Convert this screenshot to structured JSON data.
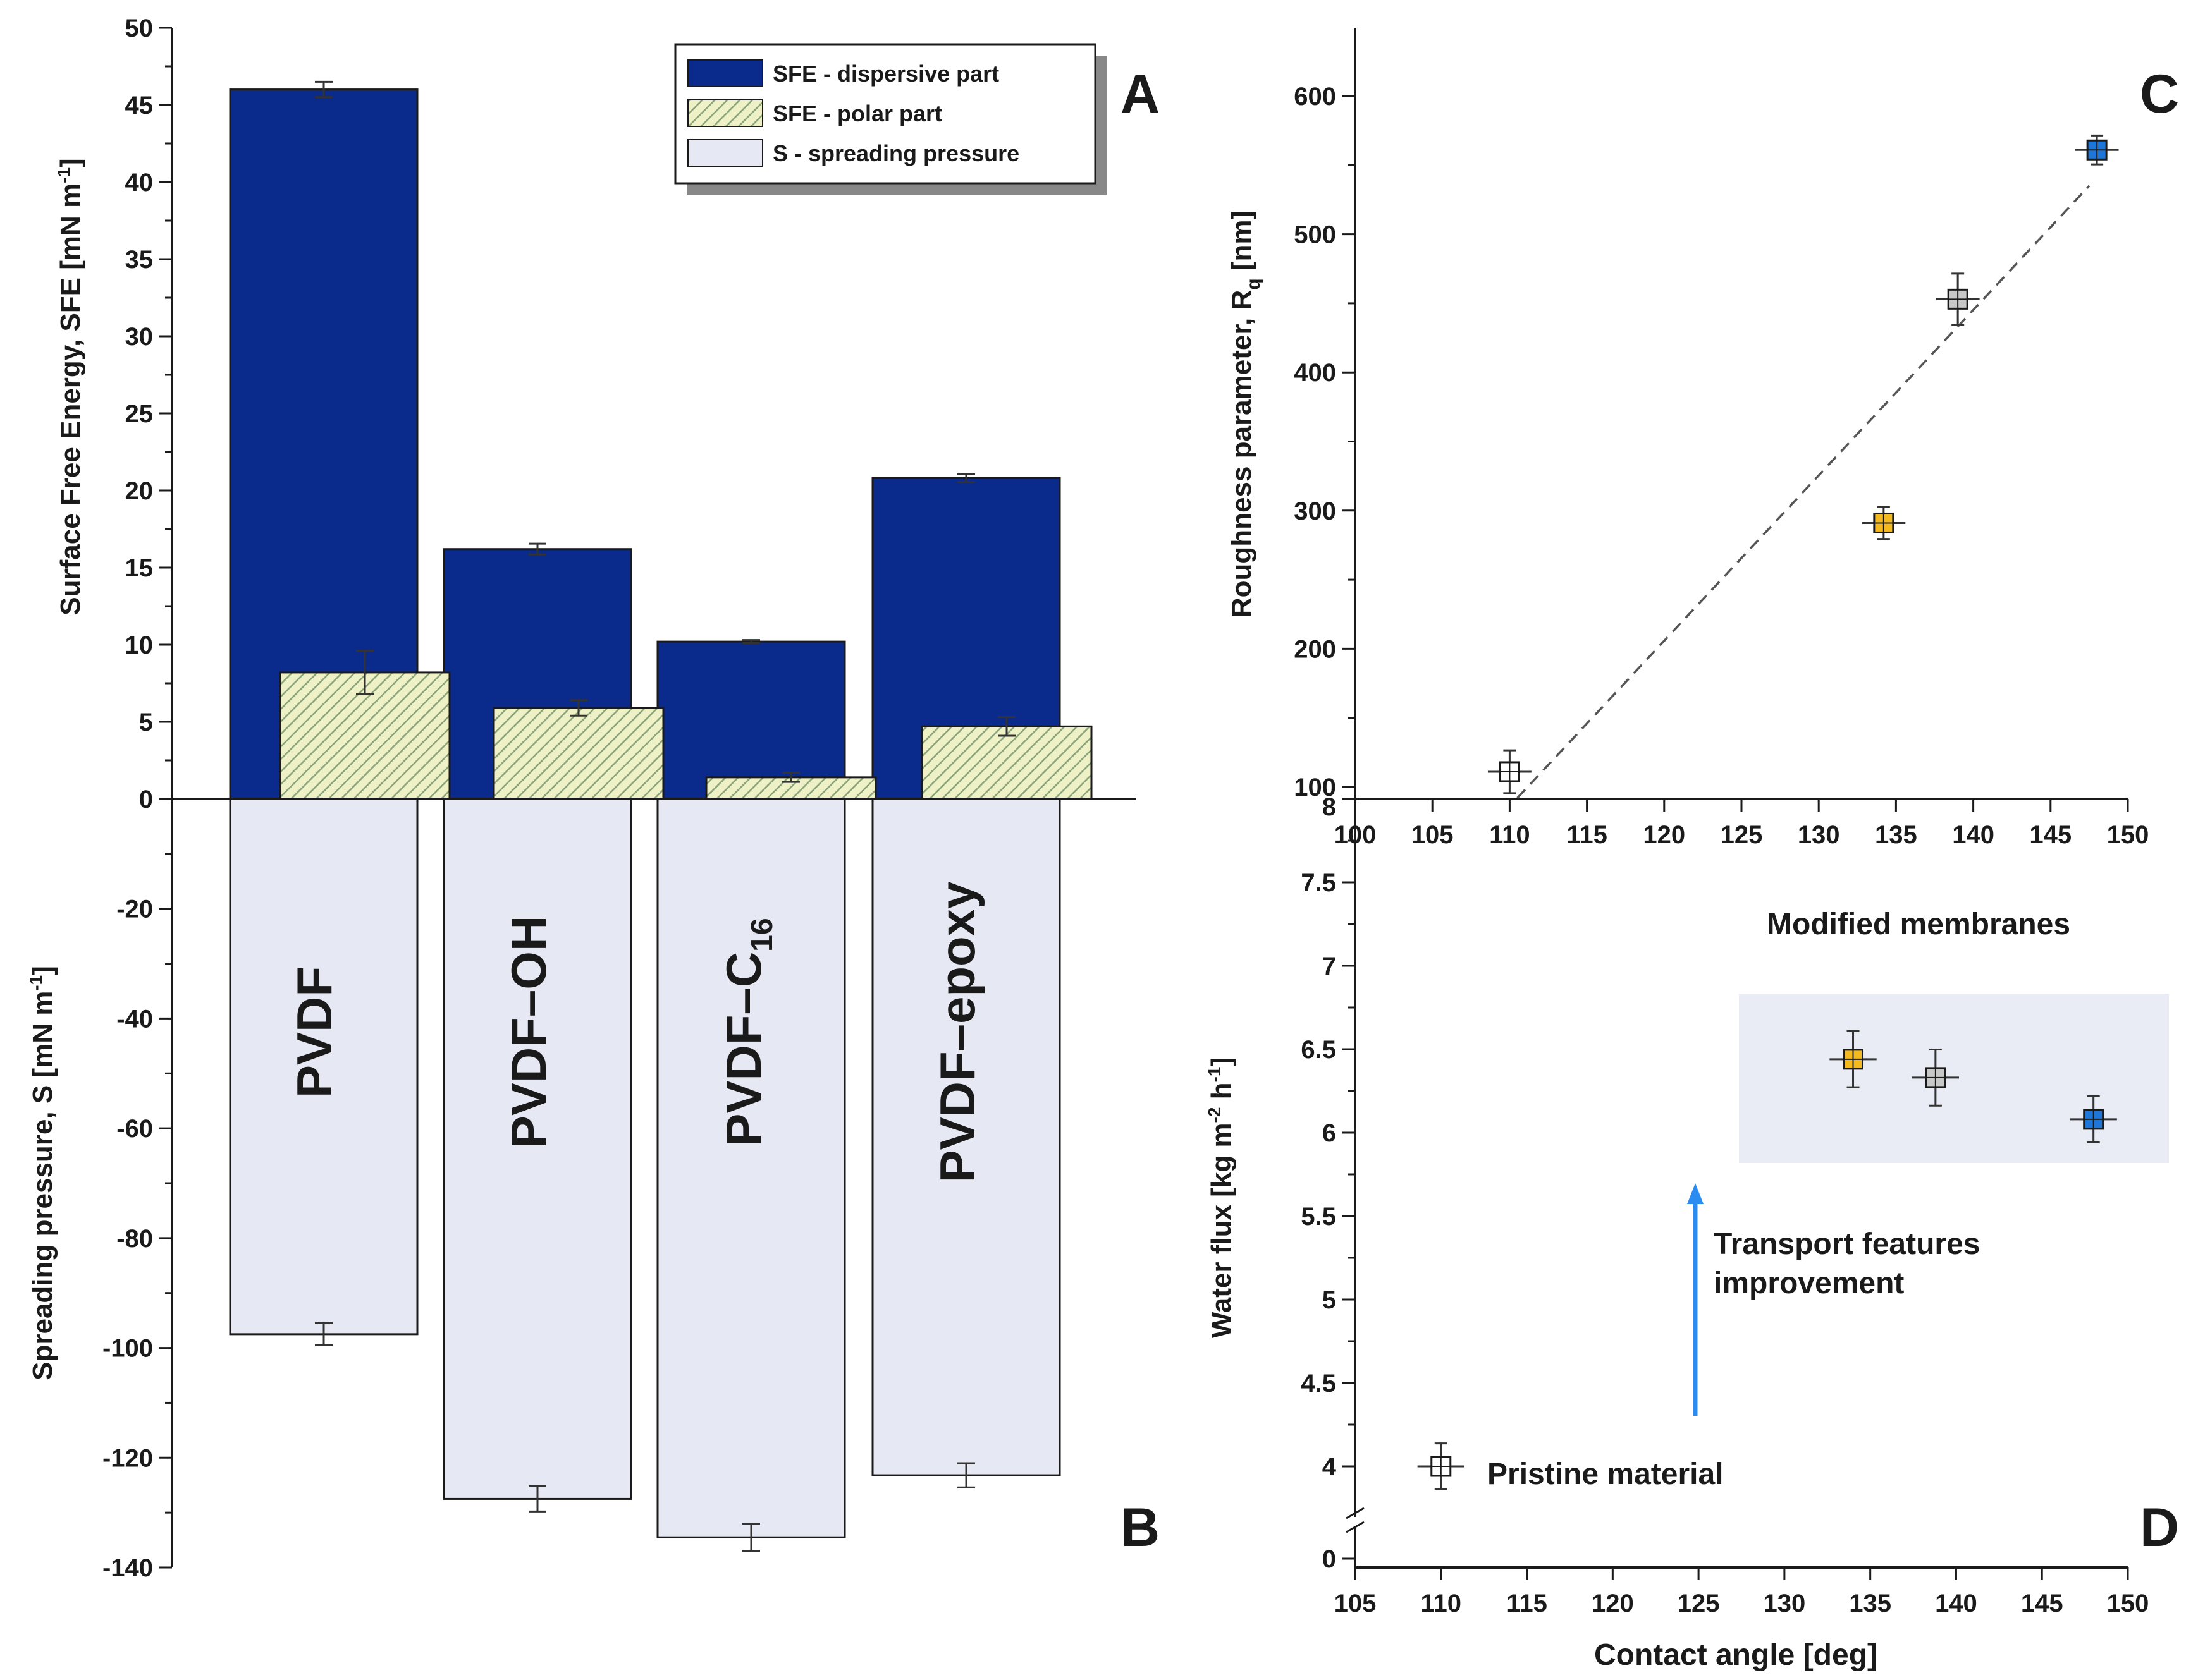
{
  "colors": {
    "dispersive": "#0a2a8c",
    "polar": "#eef0c6",
    "polar_hatch": "#8aa37a",
    "spreading": "#e6e9f4",
    "marker_pristine": "#ffffff",
    "marker_orange": "#f4b91f",
    "marker_gray": "#c8c8c8",
    "marker_blue": "#1e77d8",
    "annotation_blue": "#2a8cf0",
    "highlight_box": "#e9ebf5",
    "dashed_line": "#555555"
  },
  "panels": {
    "A": "A",
    "B": "B",
    "C": "C",
    "D": "D"
  },
  "chart_data": [
    {
      "id": "A",
      "type": "bar",
      "categories": [
        "PVDF",
        "PVDF–OH",
        "PVDF–C16",
        "PVDF–epoxy"
      ],
      "category_labels": [
        {
          "text": "PVDF",
          "subscript": ""
        },
        {
          "text": "PVDF–OH",
          "subscript": ""
        },
        {
          "text": "PVDF–C",
          "subscript": "16"
        },
        {
          "text": "PVDF–epoxy",
          "subscript": ""
        }
      ],
      "series": [
        {
          "name": "SFE - dispersive part",
          "values": [
            46.0,
            16.2,
            10.2,
            20.8
          ],
          "errors": [
            0.5,
            0.35,
            0.1,
            0.25
          ]
        },
        {
          "name": "SFE - polar part",
          "values": [
            8.2,
            5.9,
            1.4,
            4.7
          ],
          "errors": [
            1.4,
            0.5,
            0.3,
            0.6
          ]
        }
      ],
      "ylabel": "Surface Free Energy, SFE [mN m",
      "ylabel_sup": "-1",
      "ylabel_end": "]",
      "ylim": [
        0,
        50
      ],
      "yticks": [
        "0",
        "5",
        "10",
        "15",
        "20",
        "25",
        "30",
        "35",
        "40",
        "45",
        "50"
      ],
      "legend": [
        "SFE - dispersive part",
        "SFE - polar part",
        "S - spreading pressure"
      ],
      "legend_position": "top-right"
    },
    {
      "id": "B",
      "type": "bar",
      "categories": [
        "PVDF",
        "PVDF–OH",
        "PVDF–C16",
        "PVDF–epoxy"
      ],
      "series": [
        {
          "name": "S - spreading pressure",
          "values": [
            -97.5,
            -127.5,
            -134.5,
            -123.2
          ],
          "errors": [
            2.0,
            2.3,
            2.5,
            2.2
          ]
        }
      ],
      "ylabel": "Spreading pressure, S [mN m",
      "ylabel_sup": "-1",
      "ylabel_end": "]",
      "ylim": [
        -140,
        0
      ],
      "yticks": [
        "-140",
        "-120",
        "-100",
        "-80",
        "-60",
        "-40",
        "-20"
      ]
    },
    {
      "id": "C",
      "type": "scatter",
      "xlabel": "",
      "ylabel": "Roughness parameter, R",
      "ylabel_sub": "q",
      "ylabel_end": " [nm]",
      "xlim": [
        100,
        150
      ],
      "ylim": [
        92,
        650
      ],
      "xticks": [
        "100",
        "105",
        "110",
        "115",
        "120",
        "125",
        "130",
        "135",
        "140",
        "145",
        "150"
      ],
      "yticks": [
        "100",
        "200",
        "300",
        "400",
        "500",
        "600"
      ],
      "points": [
        {
          "x": 110,
          "y": 111,
          "xerr": 1.0,
          "yerr": 10,
          "color": "marker_pristine"
        },
        {
          "x": 134.2,
          "y": 291,
          "xerr": 1.0,
          "yerr": 6,
          "color": "marker_orange"
        },
        {
          "x": 139.0,
          "y": 453,
          "xerr": 1.0,
          "yerr": 13,
          "color": "marker_gray"
        },
        {
          "x": 148.0,
          "y": 561,
          "xerr": 1.0,
          "yerr": 5,
          "color": "marker_blue"
        }
      ],
      "trendline": {
        "x": [
          110.5,
          147.5
        ],
        "y": [
          92,
          535
        ],
        "style": "dashed"
      }
    },
    {
      "id": "D",
      "type": "scatter",
      "xlabel": "Contact angle [deg]",
      "ylabel": "Water flux [kg m",
      "ylabel_sup1": "-2",
      "ylabel_mid": " h",
      "ylabel_sup2": "-1",
      "ylabel_end": "]",
      "xlim": [
        105,
        150
      ],
      "ylim": [
        3.65,
        8
      ],
      "axis_break": true,
      "xticks": [
        "105",
        "110",
        "115",
        "120",
        "125",
        "130",
        "135",
        "140",
        "145",
        "150"
      ],
      "yticks": [
        "4",
        "4.5",
        "5",
        "5.5",
        "6",
        "6.5",
        "7",
        "7.5",
        "8"
      ],
      "y_extra_tick": "0",
      "points": [
        {
          "x": 110,
          "y": 4.0,
          "xerr": 1.0,
          "yerr": 0.1,
          "color": "marker_pristine"
        },
        {
          "x": 134.0,
          "y": 6.44,
          "xerr": 1.0,
          "yerr": 0.13,
          "color": "marker_orange"
        },
        {
          "x": 138.8,
          "y": 6.33,
          "xerr": 1.0,
          "yerr": 0.13,
          "color": "marker_gray"
        },
        {
          "x": 148.0,
          "y": 6.08,
          "xerr": 1.0,
          "yerr": 0.1,
          "color": "marker_blue"
        }
      ],
      "annotations": {
        "modified": "Modified membranes",
        "pristine": "Pristine material",
        "transport_line1": "Transport features",
        "transport_line2": "improvement"
      }
    }
  ]
}
